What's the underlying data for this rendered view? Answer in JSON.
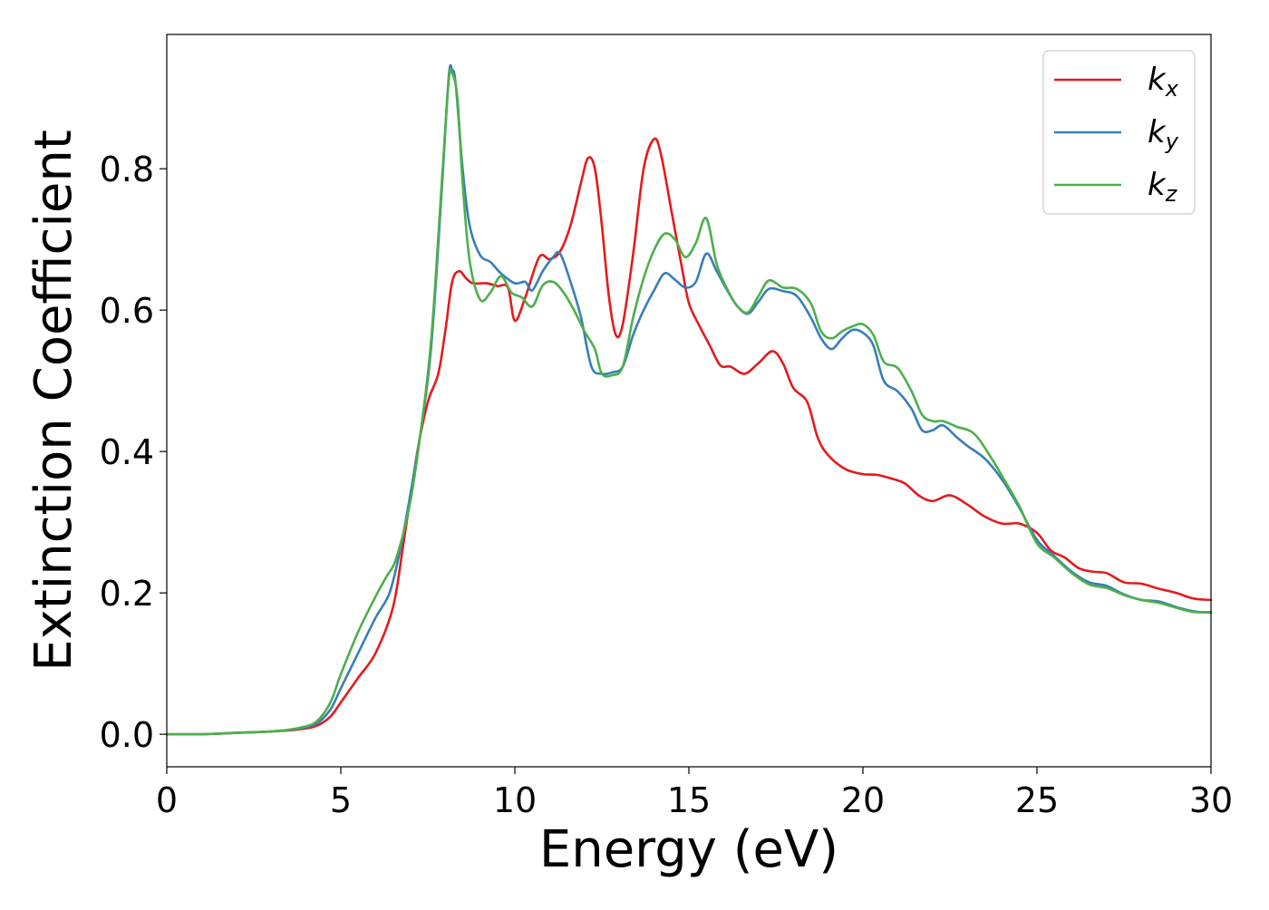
{
  "chart_data": {
    "type": "line",
    "xlabel": "Energy (eV)",
    "ylabel": "Extinction Coefficient",
    "xlim": [
      0,
      30
    ],
    "ylim": [
      -0.046,
      0.99
    ],
    "xticks": [
      "0",
      "5",
      "10",
      "15",
      "20",
      "25",
      "30"
    ],
    "yticks": [
      "0.0",
      "0.2",
      "0.4",
      "0.6",
      "0.8"
    ],
    "grid": false,
    "legend_position": "top-right",
    "series": [
      {
        "name": "k",
        "subscript": "x",
        "color": "#e41a1c",
        "points": [
          [
            0,
            0
          ],
          [
            1,
            0
          ],
          [
            2,
            0.002
          ],
          [
            3,
            0.004
          ],
          [
            3.8,
            0.007
          ],
          [
            4.3,
            0.012
          ],
          [
            4.7,
            0.025
          ],
          [
            5,
            0.045
          ],
          [
            5.5,
            0.08
          ],
          [
            6,
            0.115
          ],
          [
            6.5,
            0.18
          ],
          [
            6.8,
            0.27
          ],
          [
            7.2,
            0.4
          ],
          [
            7.5,
            0.47
          ],
          [
            7.8,
            0.51
          ],
          [
            8,
            0.57
          ],
          [
            8.2,
            0.64
          ],
          [
            8.4,
            0.655
          ],
          [
            8.6,
            0.645
          ],
          [
            8.8,
            0.638
          ],
          [
            9.2,
            0.638
          ],
          [
            9.5,
            0.634
          ],
          [
            9.8,
            0.632
          ],
          [
            10,
            0.585
          ],
          [
            10.3,
            0.618
          ],
          [
            10.7,
            0.675
          ],
          [
            11,
            0.672
          ],
          [
            11.3,
            0.683
          ],
          [
            11.6,
            0.72
          ],
          [
            11.9,
            0.78
          ],
          [
            12.1,
            0.815
          ],
          [
            12.3,
            0.8
          ],
          [
            12.5,
            0.72
          ],
          [
            12.7,
            0.62
          ],
          [
            12.9,
            0.565
          ],
          [
            13.1,
            0.58
          ],
          [
            13.4,
            0.68
          ],
          [
            13.7,
            0.8
          ],
          [
            14,
            0.842
          ],
          [
            14.2,
            0.82
          ],
          [
            14.5,
            0.74
          ],
          [
            14.8,
            0.66
          ],
          [
            15,
            0.61
          ],
          [
            15.3,
            0.578
          ],
          [
            15.6,
            0.55
          ],
          [
            15.9,
            0.522
          ],
          [
            16.2,
            0.52
          ],
          [
            16.6,
            0.51
          ],
          [
            17,
            0.525
          ],
          [
            17.4,
            0.542
          ],
          [
            17.7,
            0.525
          ],
          [
            18,
            0.49
          ],
          [
            18.4,
            0.47
          ],
          [
            18.7,
            0.42
          ],
          [
            19,
            0.395
          ],
          [
            19.5,
            0.375
          ],
          [
            20,
            0.368
          ],
          [
            20.4,
            0.367
          ],
          [
            20.8,
            0.362
          ],
          [
            21.2,
            0.355
          ],
          [
            21.6,
            0.338
          ],
          [
            22,
            0.33
          ],
          [
            22.5,
            0.338
          ],
          [
            23,
            0.325
          ],
          [
            23.5,
            0.308
          ],
          [
            24,
            0.298
          ],
          [
            24.5,
            0.298
          ],
          [
            25,
            0.285
          ],
          [
            25.4,
            0.26
          ],
          [
            25.8,
            0.25
          ],
          [
            26.2,
            0.235
          ],
          [
            26.6,
            0.23
          ],
          [
            27,
            0.228
          ],
          [
            27.5,
            0.215
          ],
          [
            28,
            0.213
          ],
          [
            28.5,
            0.206
          ],
          [
            29,
            0.2
          ],
          [
            29.5,
            0.192
          ],
          [
            30,
            0.19
          ]
        ]
      },
      {
        "name": "k",
        "subscript": "y",
        "color": "#377eb8",
        "points": [
          [
            0,
            0
          ],
          [
            1,
            0
          ],
          [
            2,
            0.002
          ],
          [
            3,
            0.004
          ],
          [
            3.8,
            0.008
          ],
          [
            4.3,
            0.015
          ],
          [
            4.7,
            0.035
          ],
          [
            5,
            0.065
          ],
          [
            5.5,
            0.115
          ],
          [
            6,
            0.165
          ],
          [
            6.4,
            0.2
          ],
          [
            6.7,
            0.26
          ],
          [
            7,
            0.34
          ],
          [
            7.3,
            0.43
          ],
          [
            7.6,
            0.55
          ],
          [
            7.9,
            0.77
          ],
          [
            8.1,
            0.93
          ],
          [
            8.2,
            0.94
          ],
          [
            8.3,
            0.92
          ],
          [
            8.5,
            0.8
          ],
          [
            8.7,
            0.72
          ],
          [
            9,
            0.678
          ],
          [
            9.3,
            0.668
          ],
          [
            9.6,
            0.652
          ],
          [
            10,
            0.638
          ],
          [
            10.3,
            0.64
          ],
          [
            10.5,
            0.628
          ],
          [
            10.8,
            0.655
          ],
          [
            11.1,
            0.675
          ],
          [
            11.3,
            0.68
          ],
          [
            11.6,
            0.64
          ],
          [
            11.9,
            0.59
          ],
          [
            12.2,
            0.52
          ],
          [
            12.5,
            0.51
          ],
          [
            12.8,
            0.512
          ],
          [
            13.1,
            0.52
          ],
          [
            13.4,
            0.565
          ],
          [
            13.7,
            0.6
          ],
          [
            14,
            0.628
          ],
          [
            14.3,
            0.652
          ],
          [
            14.6,
            0.643
          ],
          [
            14.9,
            0.632
          ],
          [
            15.2,
            0.64
          ],
          [
            15.5,
            0.68
          ],
          [
            15.8,
            0.655
          ],
          [
            16.1,
            0.628
          ],
          [
            16.4,
            0.605
          ],
          [
            16.7,
            0.595
          ],
          [
            17,
            0.612
          ],
          [
            17.3,
            0.63
          ],
          [
            17.7,
            0.627
          ],
          [
            18.1,
            0.62
          ],
          [
            18.5,
            0.59
          ],
          [
            18.8,
            0.56
          ],
          [
            19.1,
            0.545
          ],
          [
            19.4,
            0.56
          ],
          [
            19.7,
            0.572
          ],
          [
            20,
            0.568
          ],
          [
            20.3,
            0.55
          ],
          [
            20.6,
            0.5
          ],
          [
            21,
            0.485
          ],
          [
            21.4,
            0.46
          ],
          [
            21.7,
            0.43
          ],
          [
            22,
            0.43
          ],
          [
            22.3,
            0.437
          ],
          [
            22.7,
            0.42
          ],
          [
            23,
            0.408
          ],
          [
            23.5,
            0.39
          ],
          [
            24,
            0.36
          ],
          [
            24.5,
            0.32
          ],
          [
            25,
            0.275
          ],
          [
            25.5,
            0.252
          ],
          [
            26,
            0.23
          ],
          [
            26.5,
            0.215
          ],
          [
            27,
            0.21
          ],
          [
            27.5,
            0.198
          ],
          [
            28,
            0.19
          ],
          [
            28.5,
            0.188
          ],
          [
            29,
            0.18
          ],
          [
            29.5,
            0.174
          ],
          [
            30,
            0.172
          ]
        ]
      },
      {
        "name": "k",
        "subscript": "z",
        "color": "#4daf4a",
        "points": [
          [
            0,
            0
          ],
          [
            1,
            0
          ],
          [
            2,
            0.002
          ],
          [
            3,
            0.004
          ],
          [
            3.8,
            0.009
          ],
          [
            4.3,
            0.018
          ],
          [
            4.7,
            0.045
          ],
          [
            5,
            0.085
          ],
          [
            5.5,
            0.145
          ],
          [
            6,
            0.195
          ],
          [
            6.3,
            0.222
          ],
          [
            6.6,
            0.25
          ],
          [
            7,
            0.33
          ],
          [
            7.3,
            0.43
          ],
          [
            7.6,
            0.56
          ],
          [
            7.9,
            0.78
          ],
          [
            8.1,
            0.925
          ],
          [
            8.2,
            0.935
          ],
          [
            8.35,
            0.9
          ],
          [
            8.5,
            0.78
          ],
          [
            8.7,
            0.67
          ],
          [
            9,
            0.615
          ],
          [
            9.3,
            0.625
          ],
          [
            9.6,
            0.648
          ],
          [
            9.9,
            0.625
          ],
          [
            10.2,
            0.618
          ],
          [
            10.5,
            0.605
          ],
          [
            10.8,
            0.635
          ],
          [
            11.1,
            0.64
          ],
          [
            11.4,
            0.625
          ],
          [
            11.7,
            0.6
          ],
          [
            12,
            0.57
          ],
          [
            12.3,
            0.545
          ],
          [
            12.5,
            0.51
          ],
          [
            12.8,
            0.508
          ],
          [
            13.1,
            0.52
          ],
          [
            13.4,
            0.59
          ],
          [
            13.7,
            0.645
          ],
          [
            14,
            0.685
          ],
          [
            14.3,
            0.708
          ],
          [
            14.6,
            0.7
          ],
          [
            14.9,
            0.675
          ],
          [
            15.2,
            0.695
          ],
          [
            15.5,
            0.73
          ],
          [
            15.8,
            0.665
          ],
          [
            16.1,
            0.63
          ],
          [
            16.4,
            0.605
          ],
          [
            16.7,
            0.597
          ],
          [
            17,
            0.62
          ],
          [
            17.3,
            0.642
          ],
          [
            17.7,
            0.632
          ],
          [
            18.1,
            0.63
          ],
          [
            18.5,
            0.61
          ],
          [
            18.8,
            0.57
          ],
          [
            19.1,
            0.56
          ],
          [
            19.4,
            0.57
          ],
          [
            19.7,
            0.577
          ],
          [
            20,
            0.58
          ],
          [
            20.3,
            0.565
          ],
          [
            20.6,
            0.527
          ],
          [
            21,
            0.518
          ],
          [
            21.4,
            0.485
          ],
          [
            21.7,
            0.452
          ],
          [
            22,
            0.443
          ],
          [
            22.3,
            0.443
          ],
          [
            22.7,
            0.435
          ],
          [
            23.2,
            0.425
          ],
          [
            23.7,
            0.39
          ],
          [
            24,
            0.365
          ],
          [
            24.5,
            0.322
          ],
          [
            25,
            0.27
          ],
          [
            25.5,
            0.25
          ],
          [
            26,
            0.228
          ],
          [
            26.5,
            0.212
          ],
          [
            27,
            0.207
          ],
          [
            27.5,
            0.197
          ],
          [
            28,
            0.19
          ],
          [
            28.5,
            0.186
          ],
          [
            29,
            0.179
          ],
          [
            29.5,
            0.173
          ],
          [
            30,
            0.173
          ]
        ]
      }
    ]
  }
}
